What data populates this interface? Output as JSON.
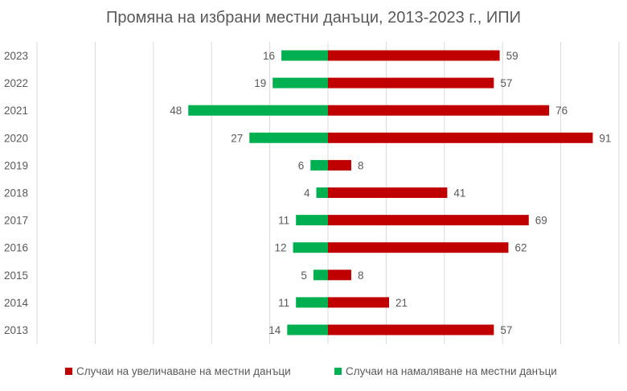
{
  "chart_data": {
    "type": "bar",
    "orientation": "horizontal",
    "title": "Промяна на избрани местни данъци, 2013-2023 г., ИПИ",
    "categories": [
      "2023",
      "2022",
      "2021",
      "2020",
      "2019",
      "2018",
      "2017",
      "2016",
      "2015",
      "2014",
      "2013"
    ],
    "series": [
      {
        "name": "Случаи на увеличаване на местни данъци",
        "color": "#C00000",
        "direction": "right",
        "values": [
          59,
          57,
          76,
          91,
          8,
          41,
          69,
          62,
          8,
          21,
          57
        ]
      },
      {
        "name": "Случаи на намаляване на местни данъци",
        "color": "#00B050",
        "direction": "left",
        "values": [
          16,
          19,
          48,
          27,
          6,
          4,
          11,
          12,
          5,
          11,
          14
        ]
      }
    ],
    "xlim": [
      -100,
      100
    ],
    "grid_step": 20,
    "grid": true,
    "gridline_color": "#D9D9D9",
    "legend_position": "bottom",
    "data_labels": true
  }
}
